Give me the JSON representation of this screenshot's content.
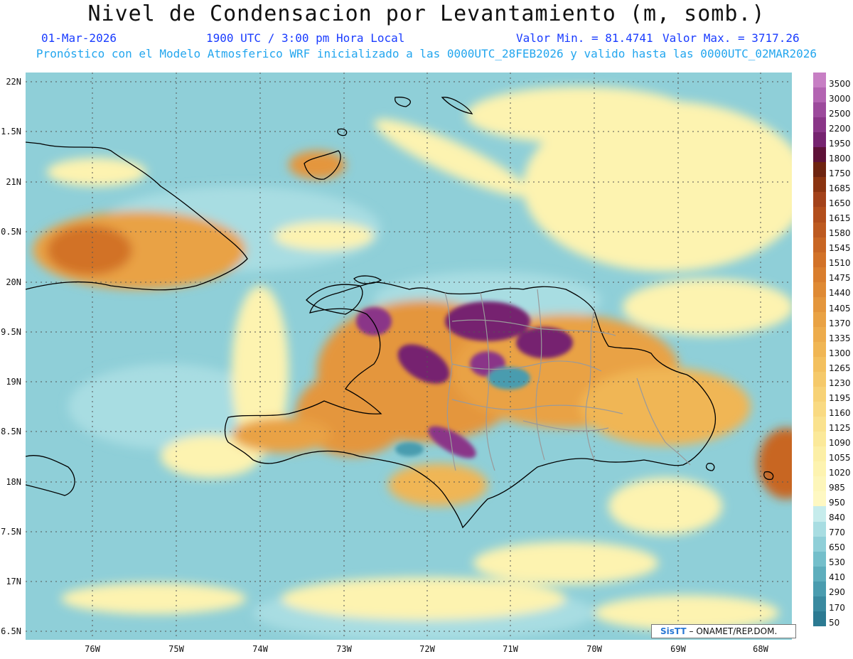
{
  "header": {
    "title": "Nivel de Condensacion por Levantamiento (m, somb.)",
    "date": "01-Mar-2026",
    "time": "1900 UTC / 3:00 pm Hora Local",
    "valmin": "Valor Min. = 81.4741",
    "valmax": "Valor Max. = 3717.26",
    "description": "Pronóstico con el Modelo Atmosferico WRF inicializado a las 0000UTC_28FEB2026 y valido hasta las  0000UTC_02MAR2026"
  },
  "axes": {
    "y_labels": [
      "22N",
      "1.5N",
      "21N",
      "0.5N",
      "20N",
      "9.5N",
      "19N",
      "8.5N",
      "18N",
      "7.5N",
      "17N",
      "6.5N"
    ],
    "x_labels": [
      "76W",
      "75W",
      "74W",
      "73W",
      "72W",
      "71W",
      "70W",
      "69W",
      "68W"
    ]
  },
  "colorbar": {
    "labels": [
      "3500",
      "3000",
      "2500",
      "2200",
      "1950",
      "1800",
      "1750",
      "1685",
      "1650",
      "1615",
      "1580",
      "1545",
      "1510",
      "1475",
      "1440",
      "1405",
      "1370",
      "1335",
      "1300",
      "1265",
      "1230",
      "1195",
      "1160",
      "1125",
      "1090",
      "1055",
      "1020",
      "985",
      "950",
      "840",
      "770",
      "650",
      "530",
      "410",
      "290",
      "170",
      "50"
    ],
    "colors": [
      "#c77fc4",
      "#b364b2",
      "#9c4a9c",
      "#8a3688",
      "#762470",
      "#5e1238",
      "#6e2410",
      "#8b3410",
      "#a3421a",
      "#b24e1c",
      "#bd5a20",
      "#c86624",
      "#d27228",
      "#d97e2e",
      "#df8a34",
      "#e4963c",
      "#e9a244",
      "#edac4c",
      "#f0b654",
      "#f3c05e",
      "#f5c96a",
      "#f7d276",
      "#f9da82",
      "#fae28e",
      "#fbe99a",
      "#fcefa6",
      "#fdf3b0",
      "#fdf6ba",
      "#fef8c2",
      "#c6ecec",
      "#a8dde2",
      "#8fcfd8",
      "#74bfcb",
      "#5eaebd",
      "#4a9caf",
      "#3a8aa0",
      "#2c7a92"
    ]
  },
  "credit": {
    "logo": "SisTT",
    "text": "– ONAMET/REP.DOM."
  }
}
